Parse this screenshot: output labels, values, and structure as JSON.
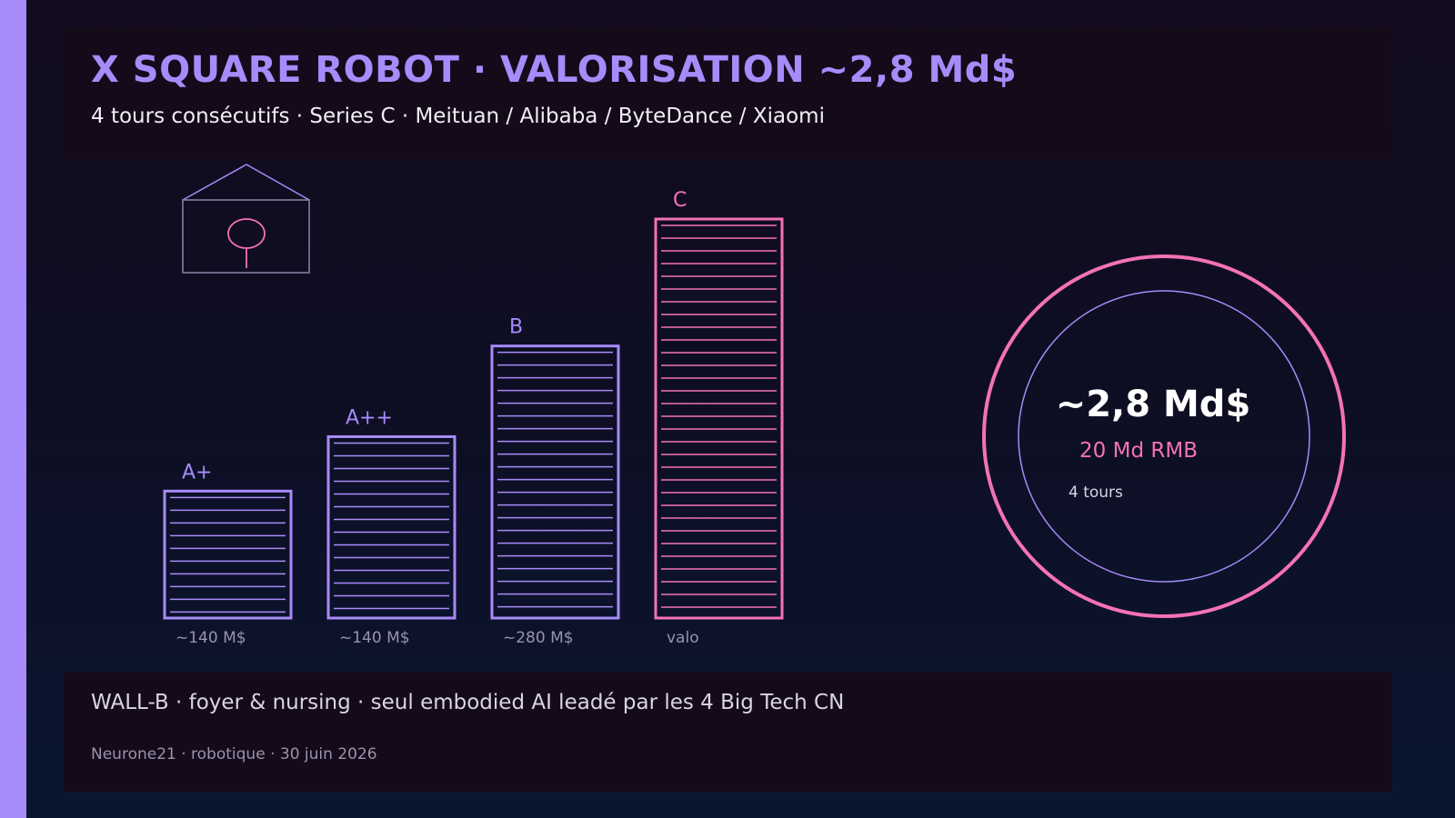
{
  "colors": {
    "accent": "#a78bfa",
    "pink": "#f472b6",
    "text": "#f1eef6",
    "muted": "#9a93ad"
  },
  "header": {
    "title": "X SQUARE ROBOT  ·  VALORISATION ~2,8 Md$",
    "subtitle": "4 tours consécutifs  ·  Series C  ·  Meituan / Alibaba / ByteDance / Xiaomi"
  },
  "icons": {
    "house": "house-icon",
    "robot": "robot-icon"
  },
  "chart_data": {
    "type": "bar",
    "categories": [
      "A+",
      "A++",
      "B",
      "C"
    ],
    "values": [
      140,
      200,
      300,
      440
    ],
    "value_labels": [
      "~140 M$",
      "~140 M$",
      "~280 M$",
      "valo"
    ],
    "bar_colors": [
      "#a78bfa",
      "#a78bfa",
      "#a78bfa",
      "#f472b6"
    ],
    "ylim": [
      0,
      440
    ],
    "grid": false,
    "title": "",
    "xlabel": "",
    "ylabel": ""
  },
  "badge": {
    "value": "~2,8 Md$",
    "rmb": "20 Md RMB",
    "rounds": "4 tours"
  },
  "footer": {
    "main": "WALL-B  ·  foyer & nursing  ·  seul embodied AI leadé par les 4 Big Tech CN",
    "meta": "Neurone21  ·  robotique  ·  30 juin 2026"
  }
}
